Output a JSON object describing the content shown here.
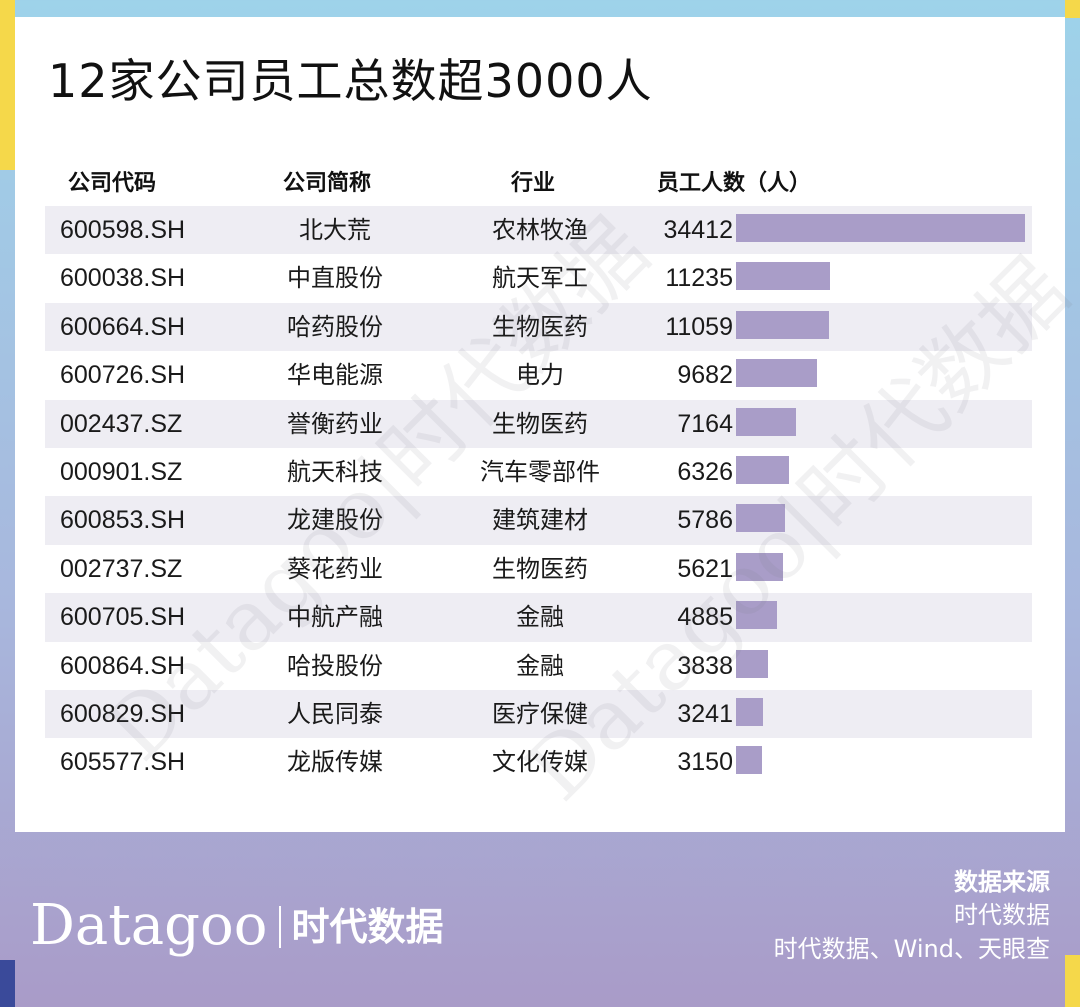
{
  "title": "12家公司员工总数超3000人",
  "headers": {
    "code": "公司代码",
    "name": "公司简称",
    "industry": "行业",
    "employees": "员工人数（人）"
  },
  "colors": {
    "bar": "#a99dc8",
    "row_shade": "#eeedf3",
    "accent_yellow": "#f5d84a",
    "accent_navy": "#3a4a9a"
  },
  "chart_data": {
    "type": "bar",
    "title": "12家公司员工总数超3000人",
    "ylabel": "员工人数（人）",
    "categories": [
      "北大荒",
      "中直股份",
      "哈药股份",
      "华电能源",
      "誉衡药业",
      "航天科技",
      "龙建股份",
      "葵花药业",
      "中航产融",
      "哈投股份",
      "人民同泰",
      "龙版传媒"
    ],
    "values": [
      34412,
      11235,
      11059,
      9682,
      7164,
      6326,
      5786,
      5621,
      4885,
      3838,
      3241,
      3150
    ],
    "rows": [
      {
        "code": "600598.SH",
        "name": "北大荒",
        "industry": "农林牧渔",
        "employees": 34412
      },
      {
        "code": "600038.SH",
        "name": "中直股份",
        "industry": "航天军工",
        "employees": 11235
      },
      {
        "code": "600664.SH",
        "name": "哈药股份",
        "industry": "生物医药",
        "employees": 11059
      },
      {
        "code": "600726.SH",
        "name": "华电能源",
        "industry": "电力",
        "employees": 9682
      },
      {
        "code": "002437.SZ",
        "name": "誉衡药业",
        "industry": "生物医药",
        "employees": 7164
      },
      {
        "code": "000901.SZ",
        "name": "航天科技",
        "industry": "汽车零部件",
        "employees": 6326
      },
      {
        "code": "600853.SH",
        "name": "龙建股份",
        "industry": "建筑建材",
        "employees": 5786
      },
      {
        "code": "002737.SZ",
        "name": "葵花药业",
        "industry": "生物医药",
        "employees": 5621
      },
      {
        "code": "600705.SH",
        "name": "中航产融",
        "industry": "金融",
        "employees": 4885
      },
      {
        "code": "600864.SH",
        "name": "哈投股份",
        "industry": "金融",
        "employees": 3838
      },
      {
        "code": "600829.SH",
        "name": "人民同泰",
        "industry": "医疗保健",
        "employees": 3241
      },
      {
        "code": "605577.SH",
        "name": "龙版传媒",
        "industry": "文化传媒",
        "employees": 3150
      }
    ]
  },
  "watermark": "Datagoo|时代数据",
  "brand": {
    "name": "Datagoo",
    "cn": "时代数据"
  },
  "source": {
    "title": "数据来源",
    "lines": [
      "时代数据",
      "时代数据、Wind、天眼查"
    ]
  }
}
